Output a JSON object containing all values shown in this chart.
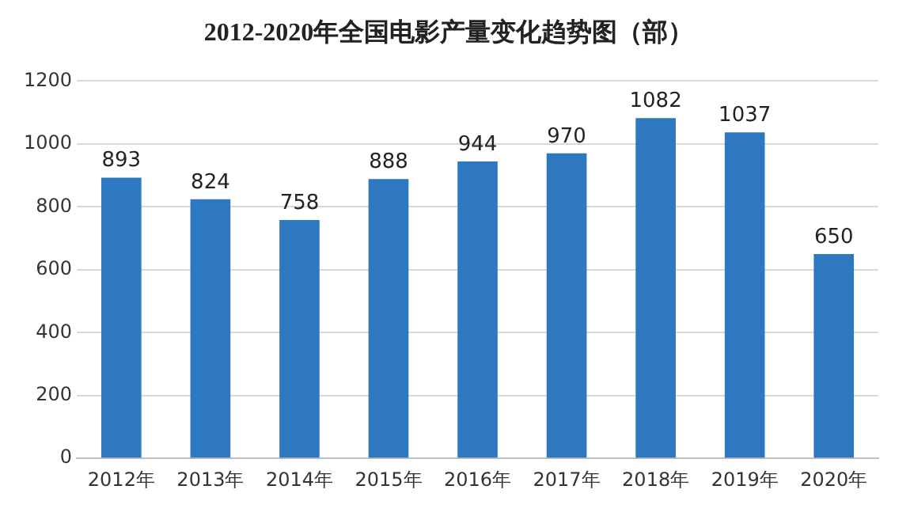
{
  "chart_data": {
    "type": "bar",
    "title": "2012-2020年全国电影产量变化趋势图（部）",
    "categories": [
      "2012年",
      "2013年",
      "2014年",
      "2015年",
      "2016年",
      "2017年",
      "2018年",
      "2019年",
      "2020年"
    ],
    "values": [
      893,
      824,
      758,
      888,
      944,
      970,
      1082,
      1037,
      650
    ],
    "color": "#2e78bf",
    "ylim": [
      0,
      1200
    ],
    "yticks": [
      0,
      200,
      400,
      600,
      800,
      1000,
      1200
    ],
    "grid": "y",
    "data_labels": true
  }
}
